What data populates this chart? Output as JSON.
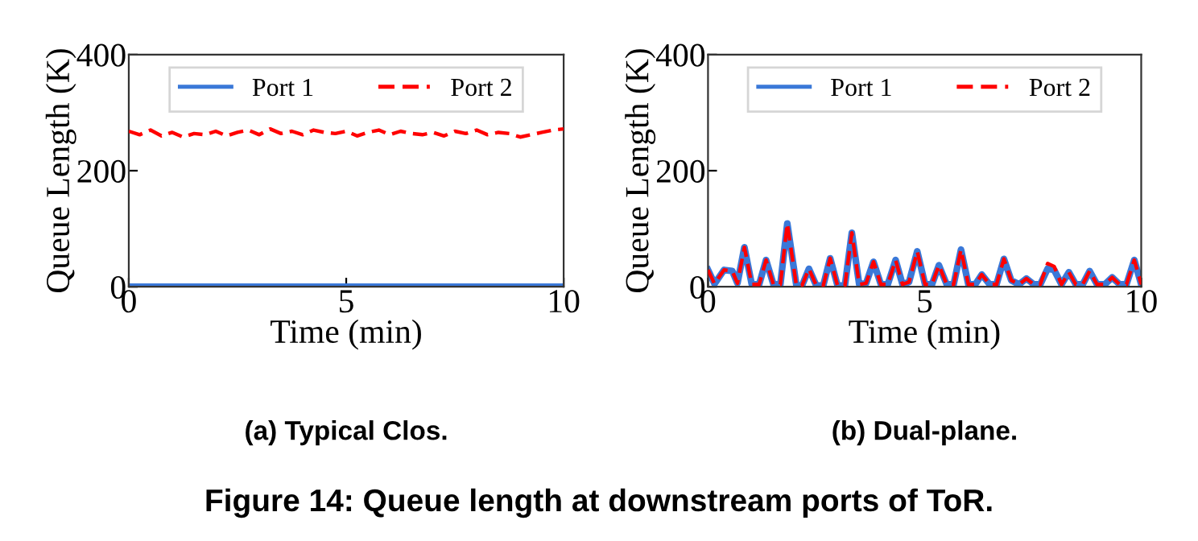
{
  "chart_data": [
    {
      "type": "line",
      "title": "(a) Typical Clos.",
      "xlabel": "Time (min)",
      "ylabel": "Queue Length (K)",
      "xlim": [
        0,
        10
      ],
      "ylim": [
        0,
        400
      ],
      "xticks": [
        0,
        5,
        10
      ],
      "yticks": [
        0,
        200,
        400
      ],
      "legend": "top",
      "grid": false,
      "annotations": [
        "Figure 14: Queue length at downstream ports of ToR."
      ],
      "series": [
        {
          "name": "Port 1",
          "color": "#3a78d8",
          "line_style": "solid",
          "x": [
            0,
            10
          ],
          "values": [
            0,
            0
          ]
        },
        {
          "name": "Port 2",
          "color": "#ff0000",
          "line_style": "dashed",
          "x": [
            0,
            0.25,
            0.5,
            0.75,
            1,
            1.25,
            1.5,
            1.75,
            2,
            2.25,
            2.5,
            2.75,
            3,
            3.25,
            3.5,
            3.75,
            4,
            4.25,
            4.5,
            4.75,
            5,
            5.25,
            5.5,
            5.75,
            6,
            6.25,
            6.5,
            6.75,
            7,
            7.25,
            7.5,
            7.75,
            8,
            8.25,
            8.5,
            8.75,
            9,
            9.25,
            9.5,
            9.75,
            10
          ],
          "values": [
            268,
            262,
            270,
            260,
            266,
            258,
            264,
            262,
            268,
            260,
            266,
            270,
            262,
            272,
            264,
            268,
            262,
            270,
            266,
            264,
            268,
            260,
            266,
            270,
            262,
            268,
            264,
            262,
            266,
            260,
            268,
            264,
            270,
            262,
            266,
            264,
            258,
            262,
            266,
            270,
            272
          ]
        }
      ]
    },
    {
      "type": "line",
      "title": "(b) Dual-plane.",
      "xlabel": "Time (min)",
      "ylabel": "Queue Length (K)",
      "xlim": [
        0,
        10
      ],
      "ylim": [
        0,
        400
      ],
      "xticks": [
        0,
        5,
        10
      ],
      "yticks": [
        0,
        200,
        400
      ],
      "legend": "top",
      "grid": false,
      "series": [
        {
          "name": "Port 1",
          "color": "#3a78d8",
          "line_style": "solid",
          "x": [
            0,
            0.15,
            0.37,
            0.56,
            0.68,
            0.84,
            1.01,
            1.18,
            1.34,
            1.51,
            1.67,
            1.83,
            2.04,
            2.17,
            2.33,
            2.5,
            2.66,
            2.82,
            2.99,
            3.16,
            3.32,
            3.49,
            3.65,
            3.82,
            3.99,
            4.15,
            4.33,
            4.49,
            4.64,
            4.83,
            5.01,
            5.17,
            5.33,
            5.51,
            5.67,
            5.84,
            6.01,
            6.17,
            6.32,
            6.5,
            6.66,
            6.83,
            7.0,
            7.18,
            7.35,
            7.52,
            7.67,
            7.84,
            7.99,
            8.16,
            8.33,
            8.49,
            8.65,
            8.81,
            8.98,
            9.16,
            9.33,
            9.5,
            9.66,
            9.84,
            10
          ],
          "values": [
            29,
            5,
            29,
            27,
            6,
            68,
            4,
            4,
            46,
            4,
            4,
            109,
            2,
            2,
            31,
            2,
            2,
            49,
            2,
            2,
            93,
            4,
            6,
            43,
            4,
            4,
            46,
            4,
            8,
            61,
            4,
            4,
            37,
            4,
            4,
            64,
            4,
            4,
            21,
            4,
            4,
            48,
            11,
            4,
            14,
            4,
            4,
            31,
            29,
            4,
            25,
            4,
            4,
            27,
            4,
            4,
            16,
            4,
            4,
            46,
            4
          ]
        },
        {
          "name": "Port 2",
          "color": "#ff0000",
          "line_style": "dashed",
          "x": [
            0,
            0.15,
            0.37,
            0.56,
            0.68,
            0.84,
            1.01,
            1.18,
            1.34,
            1.51,
            1.67,
            1.83,
            2.04,
            2.17,
            2.33,
            2.5,
            2.66,
            2.82,
            2.99,
            3.16,
            3.32,
            3.49,
            3.65,
            3.82,
            3.99,
            4.15,
            4.33,
            4.49,
            4.64,
            4.83,
            5.01,
            5.17,
            5.33,
            5.51,
            5.67,
            5.84,
            6.01,
            6.17,
            6.32,
            6.5,
            6.66,
            6.83,
            7.0,
            7.18,
            7.35,
            7.52,
            7.67,
            7.84,
            7.99,
            8.16,
            8.33,
            8.49,
            8.65,
            8.81,
            8.98,
            9.16,
            9.33,
            9.5,
            9.66,
            9.84,
            10
          ],
          "values": [
            29,
            5,
            29,
            27,
            6,
            68,
            4,
            4,
            46,
            4,
            4,
            109,
            2,
            2,
            31,
            2,
            2,
            49,
            2,
            2,
            93,
            4,
            6,
            43,
            4,
            4,
            46,
            4,
            8,
            61,
            4,
            4,
            37,
            4,
            4,
            64,
            4,
            4,
            21,
            4,
            4,
            48,
            11,
            4,
            14,
            4,
            4,
            40,
            35,
            4,
            25,
            4,
            4,
            27,
            4,
            4,
            16,
            4,
            4,
            46,
            4
          ]
        }
      ]
    }
  ]
}
